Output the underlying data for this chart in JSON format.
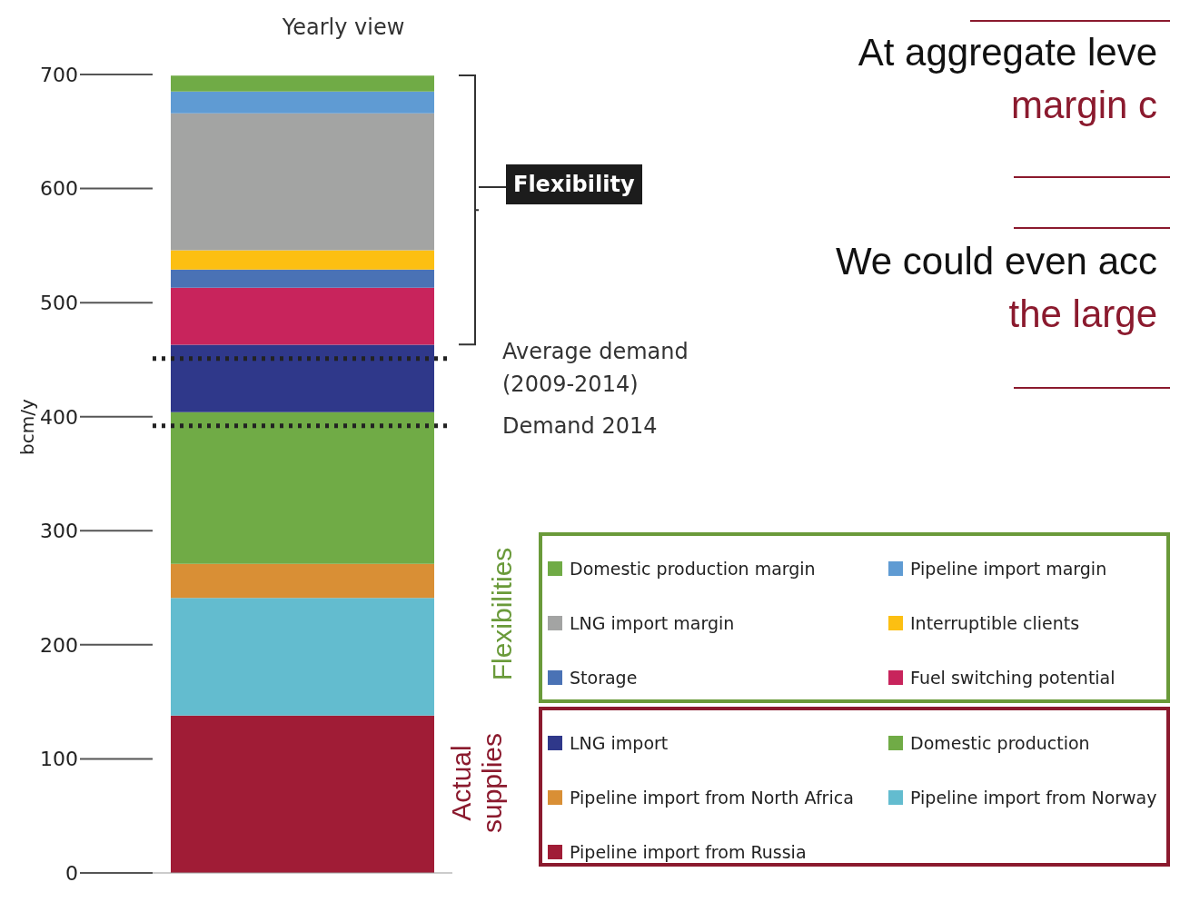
{
  "chart_data": {
    "type": "bar",
    "title": "Yearly view",
    "ylabel": "bcm/y",
    "categories": [
      null
    ],
    "stacked": true,
    "series": [
      {
        "name": "Pipeline import from Russia",
        "color": "#a01c36",
        "values": [
          138
        ]
      },
      {
        "name": "Pipeline import from Norway",
        "color": "#63bccf",
        "values": [
          103
        ]
      },
      {
        "name": "Pipeline import from North Africa",
        "color": "#d98f35",
        "values": [
          30
        ]
      },
      {
        "name": "Domestic production",
        "color": "#70ab46",
        "values": [
          133
        ]
      },
      {
        "name": "LNG import",
        "color": "#2f388a",
        "values": [
          59
        ]
      },
      {
        "name": "Fuel switching potential",
        "color": "#c8245c",
        "values": [
          50
        ]
      },
      {
        "name": "Storage",
        "color": "#4a72b5",
        "values": [
          16
        ]
      },
      {
        "name": "Interruptible clients",
        "color": "#fcbf12",
        "values": [
          17
        ]
      },
      {
        "name": "LNG import margin",
        "color": "#a3a4a3",
        "values": [
          120
        ]
      },
      {
        "name": "Pipeline import margin",
        "color": "#5f9bd3",
        "values": [
          19
        ]
      },
      {
        "name": "Domestic production margin",
        "color": "#70ab46",
        "values": [
          14
        ]
      }
    ],
    "ylim": [
      0,
      700
    ],
    "yticks": [
      0,
      100,
      200,
      300,
      400,
      500,
      600,
      700
    ],
    "legend": "bottom right",
    "ref_lines": [
      {
        "axis": "y",
        "value": 451,
        "label": "Average demand (2009-2014)",
        "color": "#222222",
        "line_style": "dotted"
      },
      {
        "axis": "y",
        "value": 392,
        "label": "Demand 2014",
        "color": "#222222",
        "line_style": "dotted"
      }
    ],
    "annotations": [
      "Flexibility",
      "Flexibilities",
      "Actual supplies",
      "At aggregate leve",
      "margin c",
      "We could even acc",
      "the large"
    ]
  }
}
